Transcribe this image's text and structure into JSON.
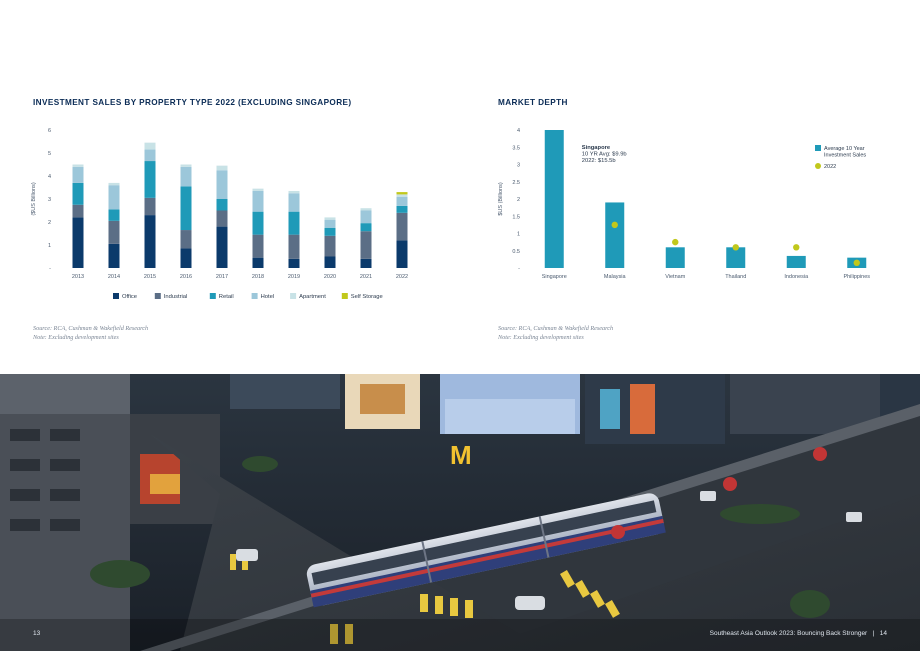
{
  "left": {
    "title": "INVESTMENT SALES BY PROPERTY TYPE 2022 (EXCLUDING SINGAPORE)",
    "source": "Source: RCA, Cushman & Wakefield Research",
    "note": "Note: Excluding development sites"
  },
  "right": {
    "title": "MARKET DEPTH",
    "source": "Source: RCA, Cushman & Wakefield Research",
    "note": "Note: Excluding development sites"
  },
  "footer": {
    "page_left": "13",
    "report_title": "Southeast Asia Outlook 2023: Bouncing Back Stronger",
    "separator": "|",
    "page_right": "14"
  },
  "colors": {
    "Office": "#0b3a6b",
    "Industrial": "#5b6e86",
    "Retail": "#1f9ab8",
    "Hotel": "#9cc7da",
    "Apartment": "#c8e2e6",
    "Self Storage": "#c1c81c",
    "navy": "#0a2b55"
  },
  "chart_data": [
    {
      "type": "bar",
      "stacked": true,
      "title": "INVESTMENT SALES BY PROPERTY TYPE 2022 (EXCLUDING SINGAPORE)",
      "ylabel": "($US Billions)",
      "ylim": [
        0,
        6
      ],
      "yticks": [
        "-",
        "1",
        "2",
        "3",
        "4",
        "5",
        "6"
      ],
      "categories": [
        "2013",
        "2014",
        "2015",
        "2016",
        "2017",
        "2018",
        "2019",
        "2020",
        "2021",
        "2022"
      ],
      "series": [
        {
          "name": "Office",
          "values": [
            2.2,
            1.05,
            2.3,
            0.85,
            1.8,
            0.45,
            0.4,
            0.5,
            0.4,
            1.2
          ]
        },
        {
          "name": "Industrial",
          "values": [
            0.55,
            1.0,
            0.75,
            0.8,
            0.7,
            1.0,
            1.05,
            0.9,
            1.2,
            1.2
          ]
        },
        {
          "name": "Retail",
          "values": [
            0.95,
            0.5,
            1.6,
            1.9,
            0.5,
            1.0,
            1.0,
            0.35,
            0.35,
            0.3
          ]
        },
        {
          "name": "Hotel",
          "values": [
            0.7,
            1.05,
            0.5,
            0.85,
            1.25,
            0.9,
            0.8,
            0.35,
            0.55,
            0.4
          ]
        },
        {
          "name": "Apartment",
          "values": [
            0.1,
            0.1,
            0.3,
            0.1,
            0.2,
            0.1,
            0.1,
            0.1,
            0.1,
            0.1
          ]
        },
        {
          "name": "Self Storage",
          "values": [
            0,
            0,
            0,
            0,
            0,
            0,
            0,
            0,
            0,
            0.1
          ]
        }
      ],
      "legend_position": "bottom"
    },
    {
      "type": "bar",
      "title": "MARKET DEPTH",
      "ylabel": "$US (Billions)",
      "ylim": [
        0,
        4
      ],
      "yticks": [
        "-",
        "0.5",
        "1",
        "1.5",
        "2",
        "2.5",
        "3",
        "3.5",
        "4"
      ],
      "categories": [
        "Singapore",
        "Malaysia",
        "Vietnam",
        "Thailand",
        "Indonesia",
        "Philippines"
      ],
      "series": [
        {
          "name": "Average 10 Year Investment Sales",
          "values": [
            4.0,
            1.9,
            0.6,
            0.6,
            0.35,
            0.3
          ]
        },
        {
          "name": "2022",
          "values": [
            null,
            1.25,
            0.75,
            0.6,
            0.6,
            0.15
          ],
          "marker": "dot"
        }
      ],
      "annotation": {
        "category": "Singapore",
        "lines": [
          "Singapore",
          "10 YR Avg: $9.9b",
          "2022: $15.5b"
        ]
      },
      "legend_position": "right"
    }
  ]
}
